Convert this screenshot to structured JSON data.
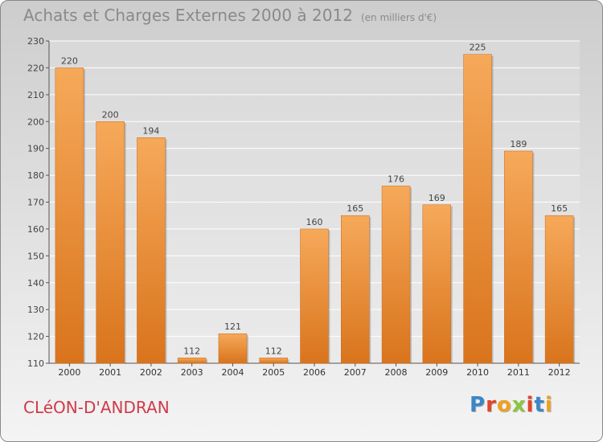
{
  "title": "Achats et Charges Externes 2000 à 2012",
  "unit": "(en milliers d'€)",
  "commune": "CLéON-D'ANDRAN",
  "logo": {
    "text": "Proxiti",
    "colors": [
      "#3a86c8",
      "#e2432a",
      "#f0a020",
      "#8cc63f",
      "#e2432a",
      "#3a86c8",
      "#f0a020"
    ]
  },
  "colors": {
    "bar_light": "#f6a95a",
    "bar_dark": "#d9741c",
    "text": "#8a8a8a",
    "commune": "#cf3a4a"
  },
  "chart_data": {
    "type": "bar",
    "categories": [
      "2000",
      "2001",
      "2002",
      "2003",
      "2004",
      "2005",
      "2006",
      "2007",
      "2008",
      "2009",
      "2010",
      "2011",
      "2012"
    ],
    "values": [
      220,
      200,
      194,
      112,
      121,
      112,
      160,
      165,
      176,
      169,
      225,
      189,
      165
    ],
    "title": "Achats et Charges Externes 2000 à 2012",
    "ylabel": "",
    "xlabel": "",
    "ylim": [
      110,
      230
    ],
    "yticks": [
      110,
      120,
      130,
      140,
      150,
      160,
      170,
      180,
      190,
      200,
      210,
      220,
      230
    ],
    "grid": true
  }
}
